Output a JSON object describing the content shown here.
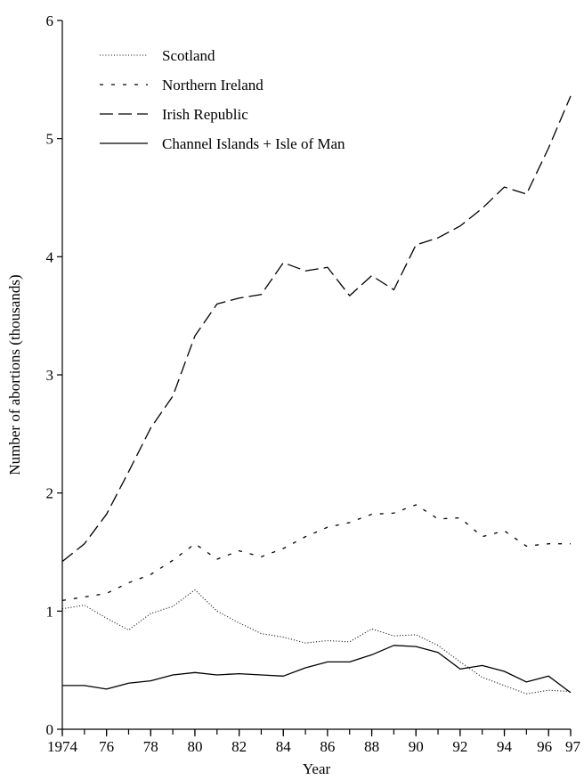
{
  "chart_data": {
    "type": "line",
    "xlabel": "Year",
    "ylabel": "Number of abortions (thousands)",
    "xlim": [
      1974,
      1997
    ],
    "ylim": [
      0,
      6
    ],
    "grid": false,
    "legend_position": "top-left",
    "x": [
      1974,
      1975,
      1976,
      1977,
      1978,
      1979,
      1980,
      1981,
      1982,
      1983,
      1984,
      1985,
      1986,
      1987,
      1988,
      1989,
      1990,
      1991,
      1992,
      1993,
      1994,
      1995,
      1996,
      1997
    ],
    "x_ticks": [
      {
        "value": 1974,
        "label": "1974"
      },
      {
        "value": 1976,
        "label": "76"
      },
      {
        "value": 1978,
        "label": "78"
      },
      {
        "value": 1980,
        "label": "80"
      },
      {
        "value": 1982,
        "label": "82"
      },
      {
        "value": 1984,
        "label": "84"
      },
      {
        "value": 1986,
        "label": "86"
      },
      {
        "value": 1988,
        "label": "88"
      },
      {
        "value": 1990,
        "label": "90"
      },
      {
        "value": 1992,
        "label": "92"
      },
      {
        "value": 1994,
        "label": "94"
      },
      {
        "value": 1996,
        "label": "96"
      },
      {
        "value": 1997,
        "label": "97"
      }
    ],
    "y_ticks": [
      {
        "value": 0,
        "label": "0"
      },
      {
        "value": 1,
        "label": "1"
      },
      {
        "value": 2,
        "label": "2"
      },
      {
        "value": 3,
        "label": "3"
      },
      {
        "value": 4,
        "label": "4"
      },
      {
        "value": 5,
        "label": "5"
      },
      {
        "value": 6,
        "label": "6"
      }
    ],
    "series": [
      {
        "name": "Scotland",
        "style": "dotted",
        "values": [
          1.02,
          1.05,
          0.94,
          0.84,
          0.98,
          1.04,
          1.18,
          1.0,
          0.9,
          0.81,
          0.78,
          0.73,
          0.75,
          0.74,
          0.85,
          0.79,
          0.8,
          0.71,
          0.57,
          0.44,
          0.37,
          0.3,
          0.33,
          0.32
        ]
      },
      {
        "name": "Northern Ireland",
        "style": "short-dash",
        "values": [
          1.09,
          1.12,
          1.15,
          1.24,
          1.31,
          1.43,
          1.57,
          1.44,
          1.51,
          1.46,
          1.53,
          1.63,
          1.71,
          1.75,
          1.82,
          1.83,
          1.9,
          1.78,
          1.79,
          1.63,
          1.68,
          1.55,
          1.57,
          1.57
        ]
      },
      {
        "name": "Irish Republic",
        "style": "long-dash",
        "values": [
          1.42,
          1.57,
          1.82,
          2.18,
          2.55,
          2.82,
          3.33,
          3.6,
          3.65,
          3.68,
          3.95,
          3.88,
          3.91,
          3.67,
          3.84,
          3.72,
          4.1,
          4.16,
          4.26,
          4.41,
          4.59,
          4.53,
          4.92,
          5.36
        ]
      },
      {
        "name": "Channel Islands + Isle of Man",
        "style": "solid",
        "values": [
          0.37,
          0.37,
          0.34,
          0.39,
          0.41,
          0.46,
          0.48,
          0.46,
          0.47,
          0.46,
          0.45,
          0.52,
          0.57,
          0.57,
          0.63,
          0.71,
          0.7,
          0.65,
          0.51,
          0.54,
          0.49,
          0.4,
          0.45,
          0.31
        ]
      }
    ]
  }
}
